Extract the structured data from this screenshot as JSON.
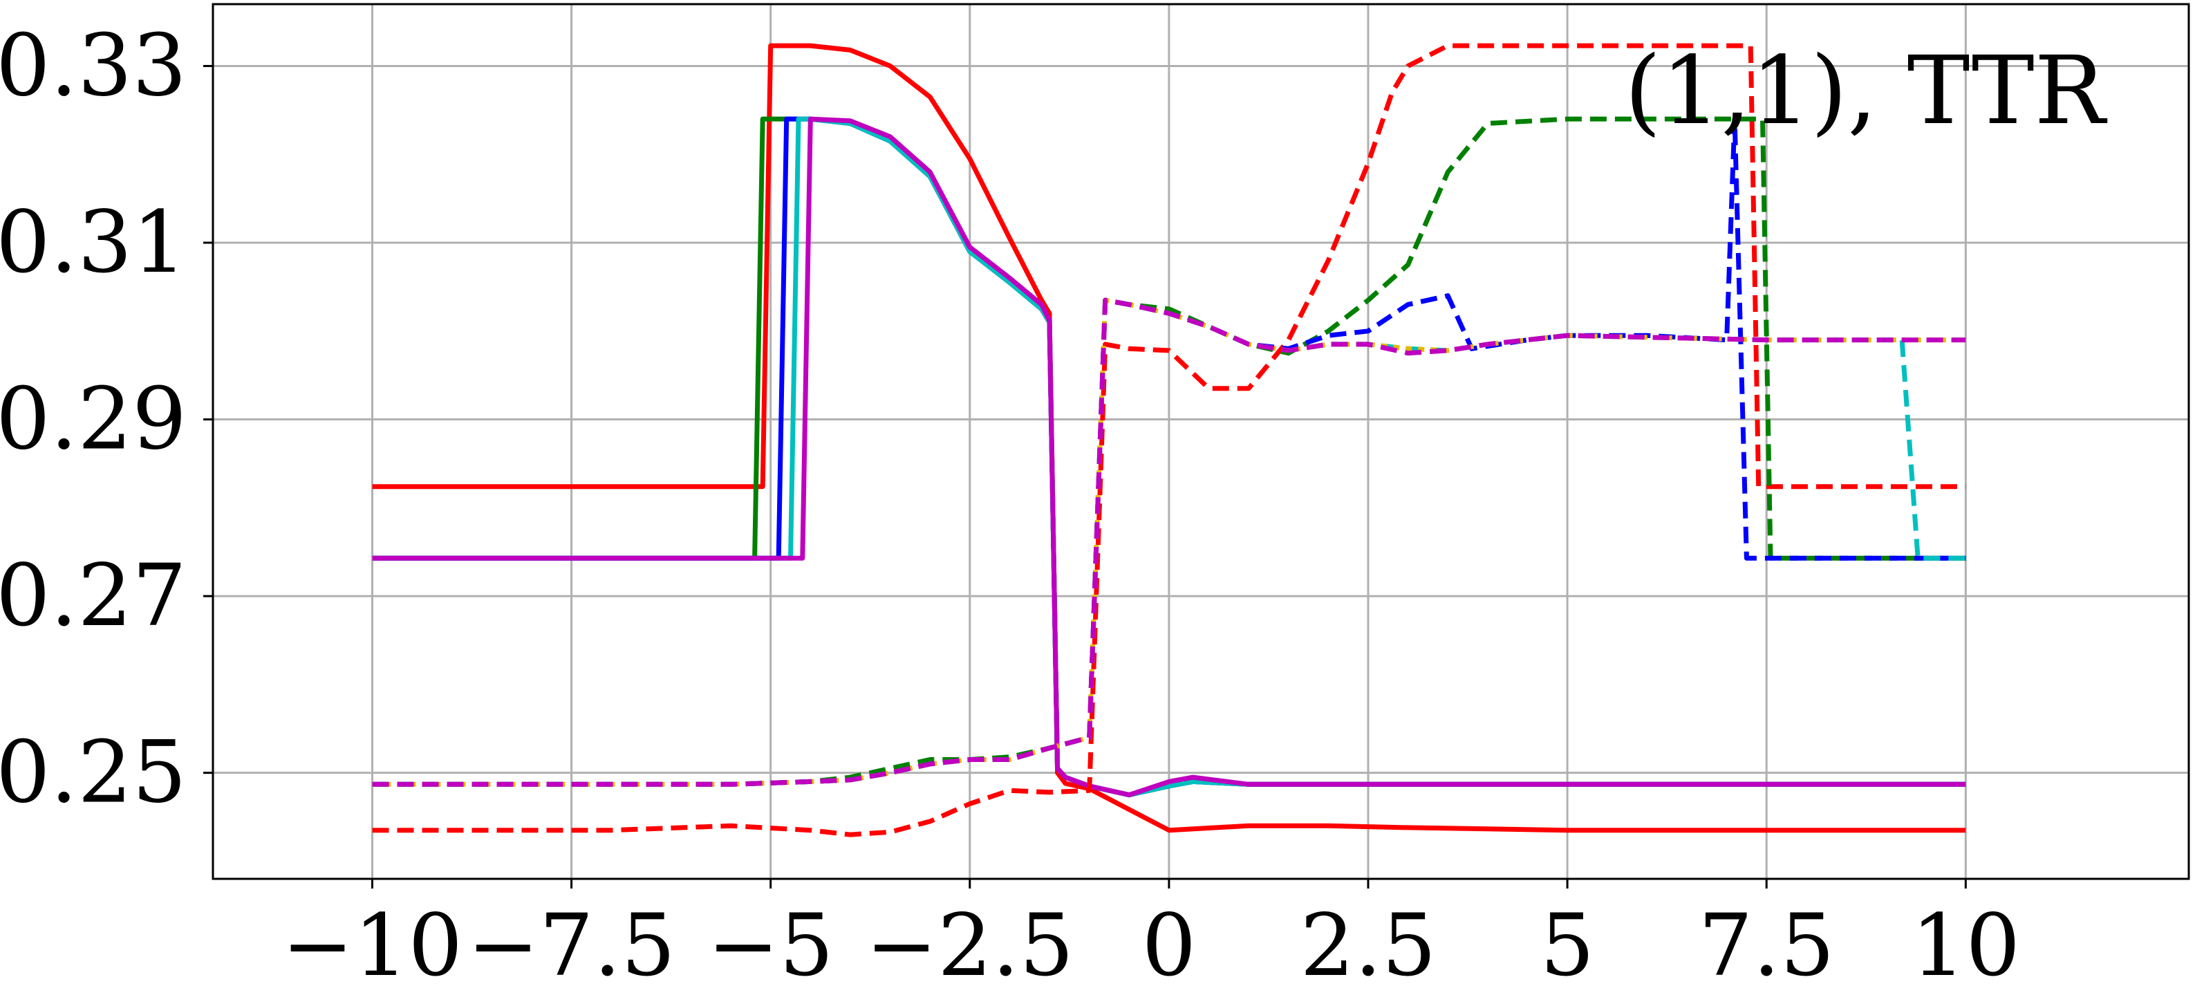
{
  "chart_data": {
    "type": "line",
    "title": "",
    "xlabel": "",
    "ylabel": "",
    "xlim": [
      -12,
      12.8
    ],
    "ylim": [
      0.238,
      0.337
    ],
    "xticks": [
      -10,
      -7.5,
      -5,
      -2.5,
      0,
      2.5,
      5,
      7.5,
      10
    ],
    "xtick_labels": [
      "−10",
      "−7.5",
      "−5",
      "−2.5",
      "0",
      "2.5",
      "5",
      "7.5",
      "10"
    ],
    "yticks": [
      0.25,
      0.27,
      0.29,
      0.31,
      0.33
    ],
    "ytick_labels": [
      "0.25",
      "0.27",
      "0.29",
      "0.31",
      "0.33"
    ],
    "grid": true,
    "legend": "none",
    "annotation": "(1,1), TTR",
    "series": [
      {
        "color": "#ff0000",
        "style": "solid",
        "x": [
          -10,
          -5.1,
          -5.0,
          -4.5,
          -4.0,
          -3.5,
          -3.0,
          -2.5,
          -2.0,
          -1.6,
          -1.5,
          -1.4,
          -1.3,
          -1.0,
          0,
          1,
          2,
          3,
          5,
          7.5,
          10
        ],
        "y": [
          0.2824,
          0.2824,
          0.3323,
          0.3323,
          0.3318,
          0.33,
          0.3265,
          0.3195,
          0.3105,
          0.3035,
          0.302,
          0.25,
          0.2488,
          0.2482,
          0.2435,
          0.244,
          0.244,
          0.2438,
          0.2435,
          0.2435,
          0.2435
        ]
      },
      {
        "color": "#008000",
        "style": "solid",
        "x": [
          -10,
          -5.2,
          -5.1,
          -4.5,
          -4.0,
          -3.5,
          -3.0,
          -2.5,
          -2.0,
          -1.6,
          -1.5,
          -1.4,
          -1.3,
          -1.0,
          -0.5,
          0,
          0.3,
          1,
          3,
          5,
          7.5,
          10
        ],
        "y": [
          0.2743,
          0.2743,
          0.324,
          0.324,
          0.3235,
          0.3215,
          0.3175,
          0.309,
          0.3055,
          0.3025,
          0.301,
          0.2505,
          0.2495,
          0.2485,
          0.2475,
          0.2485,
          0.249,
          0.2487,
          0.2487,
          0.2487,
          0.2487,
          0.2487
        ]
      },
      {
        "color": "#0000ff",
        "style": "solid",
        "x": [
          -10,
          -4.9,
          -4.8,
          -4.5,
          -4.0,
          -3.5,
          -3.0,
          -2.5,
          -2.0,
          -1.6,
          -1.5,
          -1.4,
          -1.3,
          -1.0,
          -0.5,
          0,
          0.3,
          1,
          3,
          5,
          7.5,
          10
        ],
        "y": [
          0.2743,
          0.2743,
          0.324,
          0.324,
          0.3235,
          0.3215,
          0.3175,
          0.309,
          0.3055,
          0.3025,
          0.301,
          0.2505,
          0.2495,
          0.2485,
          0.2475,
          0.2485,
          0.249,
          0.2487,
          0.2487,
          0.2487,
          0.2487,
          0.2487
        ]
      },
      {
        "color": "#00bfbf",
        "style": "solid",
        "x": [
          -10,
          -4.75,
          -4.65,
          -4.5,
          -4.0,
          -3.5,
          -3.0,
          -2.5,
          -2.0,
          -1.6,
          -1.5,
          -1.4,
          -1.3,
          -1.0,
          -0.5,
          0,
          0.3,
          1,
          3,
          5,
          7.5,
          10
        ],
        "y": [
          0.2743,
          0.2743,
          0.324,
          0.324,
          0.3235,
          0.3215,
          0.3175,
          0.309,
          0.3055,
          0.3025,
          0.301,
          0.2505,
          0.2495,
          0.2485,
          0.2475,
          0.2485,
          0.249,
          0.2487,
          0.2487,
          0.2487,
          0.2487,
          0.2487
        ]
      },
      {
        "color": "#bf00bf",
        "style": "solid",
        "x": [
          -10,
          -4.6,
          -4.5,
          -4.0,
          -3.5,
          -3.0,
          -2.5,
          -2.0,
          -1.6,
          -1.5,
          -1.4,
          -1.3,
          -1.0,
          -0.5,
          0,
          0.3,
          1,
          3,
          5,
          7.5,
          10
        ],
        "y": [
          0.2743,
          0.2743,
          0.324,
          0.3238,
          0.322,
          0.318,
          0.3095,
          0.306,
          0.303,
          0.3012,
          0.2505,
          0.2495,
          0.2485,
          0.2475,
          0.249,
          0.2495,
          0.2487,
          0.2487,
          0.2487,
          0.2487,
          0.2487
        ]
      },
      {
        "color": "#ff0000",
        "style": "dashed",
        "x": [
          -10,
          -7.0,
          -5.5,
          -4.5,
          -4.0,
          -3.5,
          -3.0,
          -2.5,
          -2.0,
          -1.5,
          -1.0,
          -0.8,
          -0.5,
          0,
          0.5,
          1.0,
          1.5,
          2.0,
          2.5,
          2.8,
          3.0,
          3.5,
          5,
          6,
          7.0,
          7.3,
          7.4,
          10
        ],
        "y": [
          0.2435,
          0.2435,
          0.244,
          0.2435,
          0.243,
          0.2433,
          0.2445,
          0.2465,
          0.248,
          0.2478,
          0.248,
          0.2985,
          0.298,
          0.2978,
          0.2935,
          0.2935,
          0.299,
          0.308,
          0.319,
          0.327,
          0.33,
          0.3323,
          0.3323,
          0.3323,
          0.3323,
          0.3323,
          0.2824,
          0.2824
        ]
      },
      {
        "color": "#008000",
        "style": "dashed",
        "x": [
          -10,
          -5.5,
          -4.5,
          -4.0,
          -3.5,
          -3.0,
          -2.5,
          -2.0,
          -1.5,
          -1.0,
          -0.8,
          -0.5,
          0,
          0.5,
          1.0,
          1.5,
          2.0,
          2.5,
          3.0,
          3.5,
          4.0,
          5,
          7.0,
          7.45,
          7.55,
          10
        ],
        "y": [
          0.2487,
          0.2487,
          0.249,
          0.2495,
          0.2505,
          0.2515,
          0.2515,
          0.2518,
          0.2528,
          0.254,
          0.3035,
          0.303,
          0.3025,
          0.3005,
          0.2985,
          0.2975,
          0.3,
          0.3035,
          0.3075,
          0.318,
          0.3235,
          0.324,
          0.324,
          0.324,
          0.2743,
          0.2743
        ]
      },
      {
        "color": "#0000ff",
        "style": "dashed",
        "x": [
          -10,
          -5.5,
          -4.5,
          -4.0,
          -3.5,
          -3.0,
          -2.5,
          -2.0,
          -1.5,
          -1.0,
          -0.8,
          -0.5,
          0,
          0.5,
          1.0,
          1.5,
          2.0,
          2.5,
          3.0,
          3.5,
          3.8,
          4.5,
          5,
          6,
          7.0,
          7.1,
          7.25,
          10
        ],
        "y": [
          0.2487,
          0.2487,
          0.249,
          0.2492,
          0.25,
          0.251,
          0.2515,
          0.2515,
          0.2528,
          0.254,
          0.3035,
          0.303,
          0.302,
          0.3005,
          0.2985,
          0.298,
          0.2995,
          0.3,
          0.303,
          0.304,
          0.298,
          0.299,
          0.2995,
          0.2995,
          0.299,
          0.324,
          0.2743,
          0.2743
        ]
      },
      {
        "color": "#00bfbf",
        "style": "dashed",
        "x": [
          -10,
          -5.5,
          -4.5,
          -4.0,
          -3.5,
          -3.0,
          -2.5,
          -2.0,
          -1.5,
          -1.0,
          -0.8,
          -0.5,
          0,
          0.5,
          1.0,
          1.5,
          2.0,
          2.5,
          3.0,
          3.5,
          4.0,
          5,
          7.5,
          9.2,
          9.4,
          10
        ],
        "y": [
          0.2487,
          0.2487,
          0.249,
          0.2492,
          0.25,
          0.251,
          0.2515,
          0.2515,
          0.2528,
          0.254,
          0.3035,
          0.303,
          0.302,
          0.3005,
          0.2985,
          0.2978,
          0.2985,
          0.2985,
          0.298,
          0.2978,
          0.2985,
          0.2995,
          0.299,
          0.299,
          0.2743,
          0.2743
        ]
      },
      {
        "color": "#e6b800",
        "style": "dotted",
        "x": [
          -10,
          -5.5,
          -4.5,
          -4.0,
          -3.5,
          -3.0,
          -2.5,
          -2.0,
          -1.5,
          -1.0,
          -0.8,
          -0.5,
          0,
          0.5,
          1.0,
          1.5,
          2.0,
          2.5,
          3.0,
          3.5,
          4.0,
          5,
          7.5,
          10
        ],
        "y": [
          0.2487,
          0.2487,
          0.249,
          0.2492,
          0.25,
          0.251,
          0.2515,
          0.2515,
          0.2528,
          0.254,
          0.3035,
          0.303,
          0.302,
          0.3005,
          0.2985,
          0.2978,
          0.2985,
          0.2985,
          0.298,
          0.2978,
          0.2985,
          0.2995,
          0.299,
          0.299
        ]
      },
      {
        "color": "#bf00bf",
        "style": "dashed",
        "x": [
          -10,
          -5.5,
          -4.5,
          -4.0,
          -3.5,
          -3.0,
          -2.5,
          -2.0,
          -1.5,
          -1.0,
          -0.8,
          -0.5,
          0,
          0.5,
          1.0,
          1.5,
          2.0,
          2.5,
          3.0,
          3.5,
          4.0,
          5,
          7.5,
          10
        ],
        "y": [
          0.2487,
          0.2487,
          0.249,
          0.2492,
          0.25,
          0.251,
          0.2515,
          0.2515,
          0.2528,
          0.254,
          0.3035,
          0.303,
          0.302,
          0.3005,
          0.2985,
          0.2978,
          0.2985,
          0.2985,
          0.2975,
          0.2978,
          0.2985,
          0.2995,
          0.299,
          0.299
        ]
      }
    ]
  }
}
